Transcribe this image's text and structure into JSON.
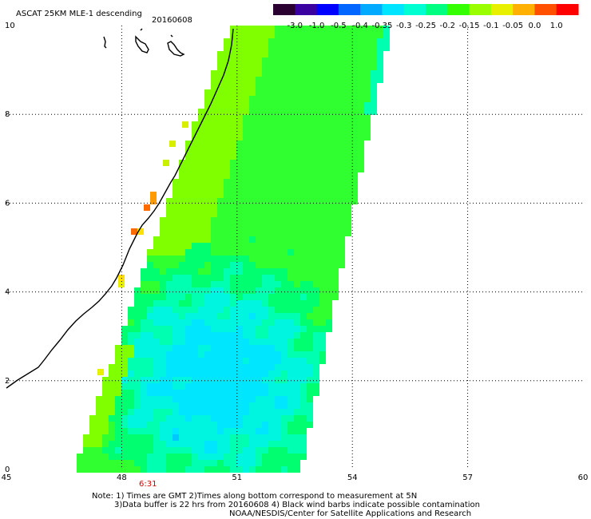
{
  "header": {
    "title": "ASCAT 25KM MLE-1 descending",
    "date": "20160608"
  },
  "colorbar": {
    "labels": [
      "-3.0",
      "-1.0",
      "-0.5",
      "-0.4",
      "-0.35",
      "-0.3",
      "-0.25",
      "-0.2",
      "-0.15",
      "-0.1",
      "-0.05",
      "0.0",
      "1.0"
    ],
    "colors": [
      "#2a0030",
      "#3a00a0",
      "#0000ff",
      "#0066ff",
      "#00aaff",
      "#00e5ff",
      "#00ffd0",
      "#00ff80",
      "#33ff00",
      "#99ff00",
      "#e8f000",
      "#ffb000",
      "#ff5000",
      "#ff0000"
    ]
  },
  "map": {
    "x_ticks": [
      "45",
      "48",
      "51",
      "54",
      "57",
      "60"
    ],
    "y_ticks": [
      "0",
      "2",
      "4",
      "6",
      "8",
      "10"
    ],
    "lon_range": [
      45,
      60
    ],
    "lat_range": [
      0,
      10
    ],
    "time_label": "6:31",
    "time_color": "#d00000"
  },
  "notes": {
    "line1": "Note: 1) Times are GMT 2)Times along bottom correspond to measurement at 5N",
    "line2": "3)Data buffer is 22 hrs from 20160608 4) Black wind barbs indicate possible contamination",
    "line3": "NOAA/NESDIS/Center for Satellite Applications and Research"
  }
}
